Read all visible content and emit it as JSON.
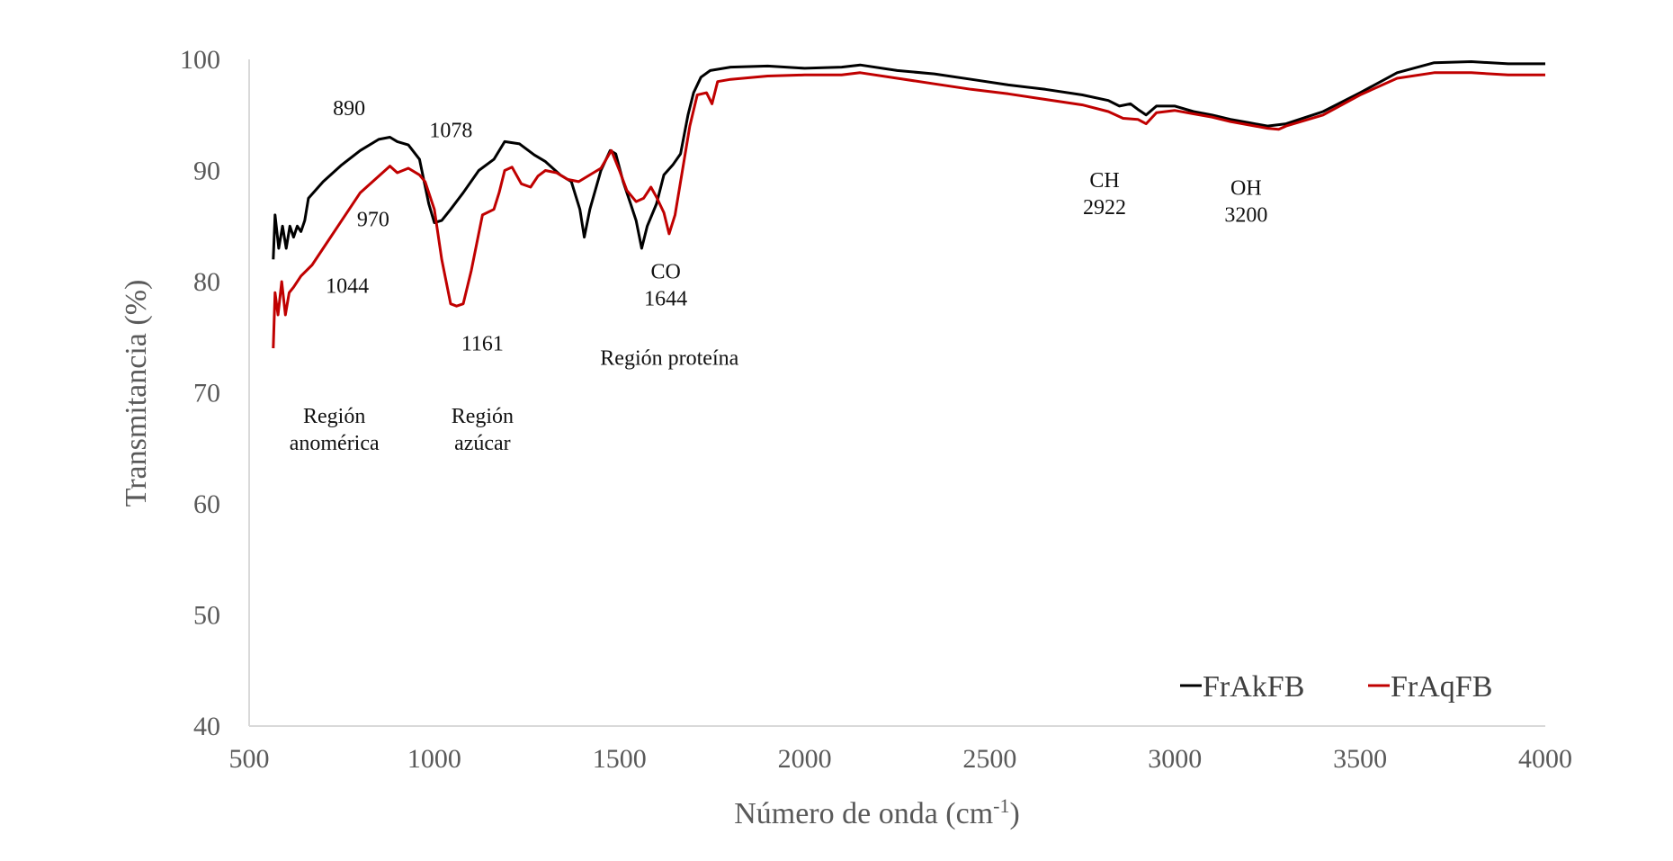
{
  "chart_data": {
    "type": "line",
    "xlabel": "Número de onda (cm",
    "xlabel_sup": "-1",
    "xlabel_end": ")",
    "ylabel": "Transmitancia (%)",
    "xlim": [
      500,
      4000
    ],
    "ylim": [
      40,
      100
    ],
    "x_ticks": [
      "500",
      "1000",
      "1500",
      "2000",
      "2500",
      "3000",
      "3500",
      "4000"
    ],
    "y_ticks": [
      "40",
      "50",
      "60",
      "70",
      "80",
      "90",
      "100"
    ],
    "grid": false,
    "legend_position": "bottom-right",
    "series": [
      {
        "name": "FrAkFB",
        "color": "#000000",
        "points": [
          [
            565,
            82
          ],
          [
            570,
            86
          ],
          [
            580,
            83
          ],
          [
            590,
            85
          ],
          [
            600,
            83
          ],
          [
            610,
            85
          ],
          [
            620,
            84
          ],
          [
            630,
            85
          ],
          [
            640,
            84.5
          ],
          [
            650,
            85.5
          ],
          [
            660,
            87.5
          ],
          [
            700,
            89
          ],
          [
            750,
            90.5
          ],
          [
            800,
            91.8
          ],
          [
            850,
            92.8
          ],
          [
            880,
            93
          ],
          [
            900,
            92.6
          ],
          [
            930,
            92.3
          ],
          [
            960,
            91
          ],
          [
            985,
            87
          ],
          [
            1000,
            85.3
          ],
          [
            1020,
            85.5
          ],
          [
            1044,
            86.5
          ],
          [
            1078,
            88
          ],
          [
            1120,
            90
          ],
          [
            1161,
            91
          ],
          [
            1190,
            92.6
          ],
          [
            1230,
            92.4
          ],
          [
            1270,
            91.4
          ],
          [
            1300,
            90.8
          ],
          [
            1340,
            89.6
          ],
          [
            1370,
            89
          ],
          [
            1393,
            86.5
          ],
          [
            1405,
            84
          ],
          [
            1420,
            86.5
          ],
          [
            1450,
            90
          ],
          [
            1475,
            91.8
          ],
          [
            1490,
            91.5
          ],
          [
            1510,
            89
          ],
          [
            1530,
            87
          ],
          [
            1545,
            85.5
          ],
          [
            1560,
            83
          ],
          [
            1575,
            85
          ],
          [
            1600,
            87
          ],
          [
            1620,
            89.6
          ],
          [
            1644,
            90.5
          ],
          [
            1665,
            91.5
          ],
          [
            1685,
            95
          ],
          [
            1700,
            97
          ],
          [
            1720,
            98.4
          ],
          [
            1745,
            99
          ],
          [
            1800,
            99.3
          ],
          [
            1900,
            99.4
          ],
          [
            2000,
            99.2
          ],
          [
            2100,
            99.3
          ],
          [
            2150,
            99.5
          ],
          [
            2250,
            99
          ],
          [
            2350,
            98.7
          ],
          [
            2450,
            98.2
          ],
          [
            2550,
            97.7
          ],
          [
            2650,
            97.3
          ],
          [
            2750,
            96.8
          ],
          [
            2820,
            96.3
          ],
          [
            2850,
            95.8
          ],
          [
            2880,
            96
          ],
          [
            2900,
            95.5
          ],
          [
            2922,
            95
          ],
          [
            2950,
            95.8
          ],
          [
            3000,
            95.8
          ],
          [
            3050,
            95.3
          ],
          [
            3100,
            95
          ],
          [
            3150,
            94.6
          ],
          [
            3200,
            94.3
          ],
          [
            3250,
            94
          ],
          [
            3300,
            94.2
          ],
          [
            3400,
            95.3
          ],
          [
            3500,
            97
          ],
          [
            3600,
            98.8
          ],
          [
            3700,
            99.7
          ],
          [
            3800,
            99.8
          ],
          [
            3900,
            99.6
          ],
          [
            4000,
            99.6
          ]
        ]
      },
      {
        "name": "FrAqFB",
        "color": "#c00000",
        "points": [
          [
            565,
            74
          ],
          [
            570,
            79
          ],
          [
            578,
            77
          ],
          [
            588,
            80
          ],
          [
            598,
            77
          ],
          [
            608,
            79
          ],
          [
            620,
            79.5
          ],
          [
            640,
            80.5
          ],
          [
            670,
            81.5
          ],
          [
            700,
            83
          ],
          [
            750,
            85.5
          ],
          [
            800,
            88
          ],
          [
            850,
            89.5
          ],
          [
            880,
            90.4
          ],
          [
            900,
            89.8
          ],
          [
            930,
            90.2
          ],
          [
            960,
            89.6
          ],
          [
            975,
            89
          ],
          [
            1000,
            86.5
          ],
          [
            1020,
            82
          ],
          [
            1044,
            78
          ],
          [
            1060,
            77.8
          ],
          [
            1078,
            78
          ],
          [
            1100,
            81
          ],
          [
            1130,
            86
          ],
          [
            1161,
            86.5
          ],
          [
            1175,
            88
          ],
          [
            1190,
            90
          ],
          [
            1210,
            90.3
          ],
          [
            1235,
            88.8
          ],
          [
            1260,
            88.5
          ],
          [
            1280,
            89.5
          ],
          [
            1300,
            90
          ],
          [
            1330,
            89.8
          ],
          [
            1360,
            89.2
          ],
          [
            1390,
            89
          ],
          [
            1420,
            89.6
          ],
          [
            1450,
            90.2
          ],
          [
            1478,
            91.8
          ],
          [
            1500,
            90
          ],
          [
            1520,
            88.2
          ],
          [
            1545,
            87.2
          ],
          [
            1565,
            87.5
          ],
          [
            1585,
            88.5
          ],
          [
            1600,
            87.6
          ],
          [
            1620,
            86.2
          ],
          [
            1634,
            84.3
          ],
          [
            1650,
            86
          ],
          [
            1670,
            90
          ],
          [
            1690,
            94
          ],
          [
            1710,
            96.8
          ],
          [
            1735,
            97
          ],
          [
            1750,
            96
          ],
          [
            1765,
            98
          ],
          [
            1800,
            98.2
          ],
          [
            1900,
            98.5
          ],
          [
            2000,
            98.6
          ],
          [
            2100,
            98.6
          ],
          [
            2150,
            98.8
          ],
          [
            2250,
            98.3
          ],
          [
            2350,
            97.8
          ],
          [
            2450,
            97.3
          ],
          [
            2550,
            96.9
          ],
          [
            2650,
            96.4
          ],
          [
            2750,
            95.9
          ],
          [
            2820,
            95.3
          ],
          [
            2860,
            94.7
          ],
          [
            2900,
            94.6
          ],
          [
            2922,
            94.2
          ],
          [
            2950,
            95.2
          ],
          [
            3000,
            95.4
          ],
          [
            3050,
            95.1
          ],
          [
            3100,
            94.8
          ],
          [
            3150,
            94.4
          ],
          [
            3200,
            94.1
          ],
          [
            3250,
            93.8
          ],
          [
            3280,
            93.7
          ],
          [
            3300,
            94
          ],
          [
            3400,
            95
          ],
          [
            3500,
            96.8
          ],
          [
            3600,
            98.3
          ],
          [
            3700,
            98.8
          ],
          [
            3800,
            98.8
          ],
          [
            3900,
            98.6
          ],
          [
            4000,
            98.6
          ]
        ]
      }
    ],
    "annotations": [
      {
        "lines": [
          "890"
        ],
        "x": 770,
        "y": 95
      },
      {
        "lines": [
          "970"
        ],
        "x": 835,
        "y": 85
      },
      {
        "lines": [
          "1044"
        ],
        "x": 765,
        "y": 79
      },
      {
        "lines": [
          "1078"
        ],
        "x": 1045,
        "y": 93
      },
      {
        "lines": [
          "1161"
        ],
        "x": 1130,
        "y": 73.8
      },
      {
        "lines": [
          "CO",
          "1644"
        ],
        "x": 1625,
        "y": 80.3
      },
      {
        "lines": [
          "CH",
          "2922"
        ],
        "x": 2810,
        "y": 88.5
      },
      {
        "lines": [
          "OH",
          "3200"
        ],
        "x": 3192,
        "y": 87.8
      },
      {
        "lines": [
          "Región",
          "anomérica"
        ],
        "x": 730,
        "y": 67.3
      },
      {
        "lines": [
          "Región",
          "azúcar"
        ],
        "x": 1130,
        "y": 67.3
      },
      {
        "lines": [
          "Región proteína"
        ],
        "x": 1635,
        "y": 72.5
      }
    ]
  }
}
